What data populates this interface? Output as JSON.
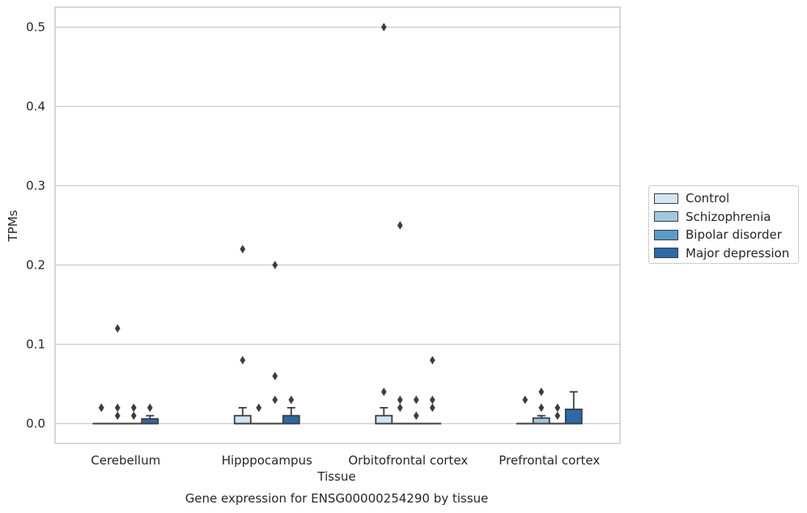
{
  "chart_data": {
    "type": "box",
    "xlabel": "Tissue",
    "ylabel": "TPMs",
    "caption": "Gene expression for ENSG00000254290 by tissue",
    "ylim": [
      -0.025,
      0.525
    ],
    "yticks": [
      0.0,
      0.1,
      0.2,
      0.3,
      0.4,
      0.5
    ],
    "ytick_labels": [
      "0.0",
      "0.1",
      "0.2",
      "0.3",
      "0.4",
      "0.5"
    ],
    "grid": true,
    "legend_position": "right",
    "categories": [
      "Cerebellum",
      "Hipppocampus",
      "Orbitofrontal cortex",
      "Prefrontal cortex"
    ],
    "series": [
      {
        "name": "Control",
        "color": "#d3e4f3",
        "boxes": [
          {
            "q1": 0.0,
            "median": 0.0,
            "q3": 0.0,
            "whislo": 0.0,
            "whishi": 0.0,
            "fliers": [
              0.02,
              0.02
            ]
          },
          {
            "q1": 0.0,
            "median": 0.0,
            "q3": 0.01,
            "whislo": 0.0,
            "whishi": 0.02,
            "fliers": [
              0.08,
              0.22
            ]
          },
          {
            "q1": 0.0,
            "median": 0.0,
            "q3": 0.01,
            "whislo": 0.0,
            "whishi": 0.02,
            "fliers": [
              0.04,
              0.5
            ]
          },
          {
            "q1": 0.0,
            "median": 0.0,
            "q3": 0.0,
            "whislo": 0.0,
            "whishi": 0.0,
            "fliers": [
              0.03
            ]
          }
        ]
      },
      {
        "name": "Schizophrenia",
        "color": "#9ecae1",
        "boxes": [
          {
            "q1": 0.0,
            "median": 0.0,
            "q3": 0.0,
            "whislo": 0.0,
            "whishi": 0.0,
            "fliers": [
              0.01,
              0.02,
              0.12
            ]
          },
          {
            "q1": 0.0,
            "median": 0.0,
            "q3": 0.0,
            "whislo": 0.0,
            "whishi": 0.0,
            "fliers": [
              0.02
            ]
          },
          {
            "q1": 0.0,
            "median": 0.0,
            "q3": 0.0,
            "whislo": 0.0,
            "whishi": 0.0,
            "fliers": [
              0.02,
              0.03,
              0.25
            ]
          },
          {
            "q1": 0.0,
            "median": 0.0,
            "q3": 0.007,
            "whislo": 0.0,
            "whishi": 0.01,
            "fliers": [
              0.02,
              0.04
            ]
          }
        ]
      },
      {
        "name": "Bipolar disorder",
        "color": "#5a9ccb",
        "boxes": [
          {
            "q1": 0.0,
            "median": 0.0,
            "q3": 0.0,
            "whislo": 0.0,
            "whishi": 0.0,
            "fliers": [
              0.01,
              0.02
            ]
          },
          {
            "q1": 0.0,
            "median": 0.0,
            "q3": 0.0,
            "whislo": 0.0,
            "whishi": 0.0,
            "fliers": [
              0.03,
              0.06,
              0.2
            ]
          },
          {
            "q1": 0.0,
            "median": 0.0,
            "q3": 0.0,
            "whislo": 0.0,
            "whishi": 0.0,
            "fliers": [
              0.01,
              0.03
            ]
          },
          {
            "q1": 0.0,
            "median": 0.0,
            "q3": 0.0,
            "whislo": 0.0,
            "whishi": 0.0,
            "fliers": [
              0.01,
              0.02
            ]
          }
        ]
      },
      {
        "name": "Major depression",
        "color": "#2b6aa8",
        "boxes": [
          {
            "q1": 0.0,
            "median": 0.0,
            "q3": 0.006,
            "whislo": 0.0,
            "whishi": 0.01,
            "fliers": [
              0.02
            ]
          },
          {
            "q1": 0.0,
            "median": 0.0,
            "q3": 0.01,
            "whislo": 0.0,
            "whishi": 0.02,
            "fliers": [
              0.03
            ]
          },
          {
            "q1": 0.0,
            "median": 0.0,
            "q3": 0.0,
            "whislo": 0.0,
            "whishi": 0.0,
            "fliers": [
              0.02,
              0.03,
              0.08
            ]
          },
          {
            "q1": 0.0,
            "median": 0.0,
            "q3": 0.018,
            "whislo": 0.0,
            "whishi": 0.04,
            "fliers": []
          }
        ]
      }
    ]
  }
}
